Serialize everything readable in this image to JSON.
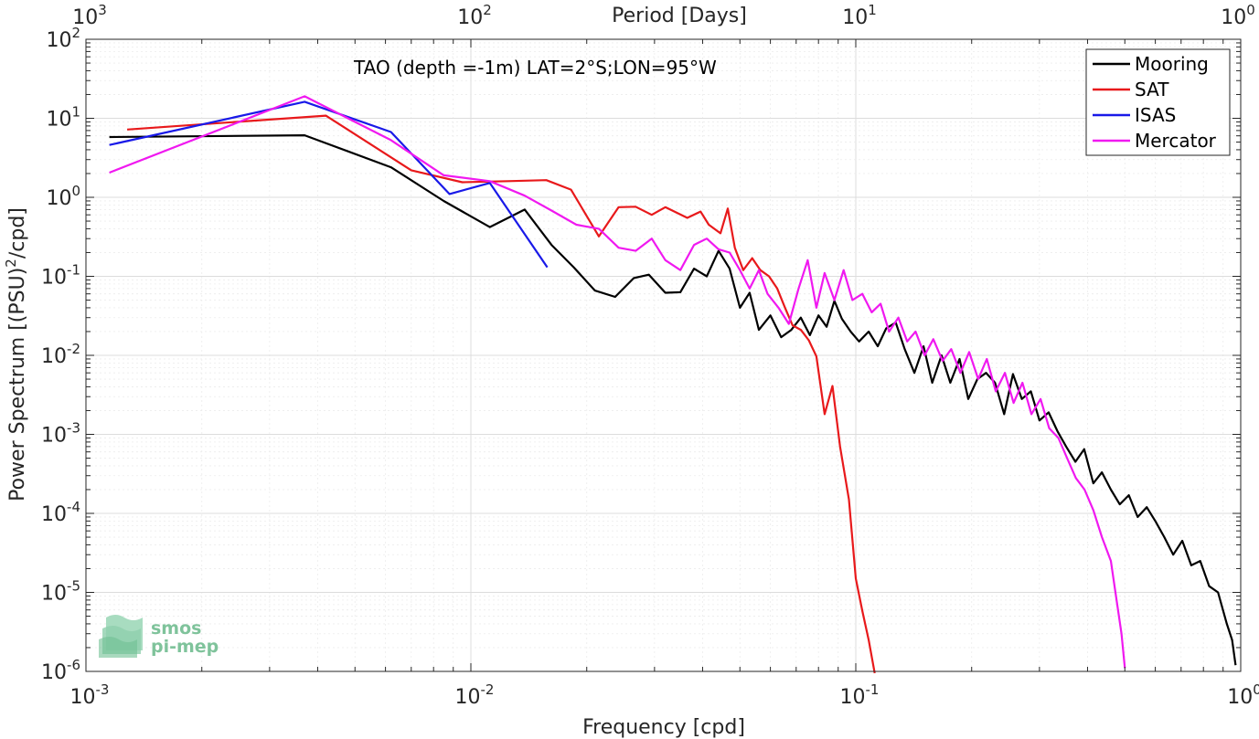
{
  "chart_data": {
    "type": "line",
    "title": "TAO (depth =-1m) LAT=2°S;LON=95°W",
    "xlabel": "Frequency [cpd]",
    "ylabel": "Power Spectrum [(PSU)²/cpd]",
    "ylabel_base": "Power Spectrum [(PSU)",
    "ylabel_sup": "2",
    "ylabel_tail": "/cpd]",
    "top_xlabel": "Period [Days]",
    "xscale": "log",
    "yscale": "log",
    "xlim": [
      0.001,
      1
    ],
    "ylim": [
      1e-06,
      100
    ],
    "grid": true,
    "legend_position": "top-right",
    "x_tick_labels": [
      {
        "base": "10",
        "exp": "-3"
      },
      {
        "base": "10",
        "exp": "-2"
      },
      {
        "base": "10",
        "exp": "-1"
      },
      {
        "base": "10",
        "exp": "0"
      }
    ],
    "top_tick_labels": [
      {
        "base": "10",
        "exp": "3"
      },
      {
        "base": "10",
        "exp": "2"
      },
      {
        "base": "10",
        "exp": "1"
      },
      {
        "base": "10",
        "exp": "0"
      }
    ],
    "y_tick_labels": [
      {
        "base": "10",
        "exp": "-6"
      },
      {
        "base": "10",
        "exp": "-5"
      },
      {
        "base": "10",
        "exp": "-4"
      },
      {
        "base": "10",
        "exp": "-3"
      },
      {
        "base": "10",
        "exp": "-2"
      },
      {
        "base": "10",
        "exp": "-1"
      },
      {
        "base": "10",
        "exp": "0"
      },
      {
        "base": "10",
        "exp": "1"
      },
      {
        "base": "10",
        "exp": "2"
      }
    ],
    "series": [
      {
        "name": "Mooring",
        "color": "#000000",
        "points": [
          [
            0.00115,
            5.8
          ],
          [
            0.0037,
            6.1
          ],
          [
            0.0062,
            2.4
          ],
          [
            0.0085,
            0.9
          ],
          [
            0.0112,
            0.42
          ],
          [
            0.0138,
            0.7
          ],
          [
            0.0162,
            0.25
          ],
          [
            0.0185,
            0.13
          ],
          [
            0.021,
            0.066
          ],
          [
            0.0237,
            0.055
          ],
          [
            0.0265,
            0.095
          ],
          [
            0.029,
            0.105
          ],
          [
            0.032,
            0.062
          ],
          [
            0.035,
            0.063
          ],
          [
            0.038,
            0.125
          ],
          [
            0.041,
            0.1
          ],
          [
            0.044,
            0.21
          ],
          [
            0.047,
            0.125
          ],
          [
            0.05,
            0.04
          ],
          [
            0.053,
            0.062
          ],
          [
            0.056,
            0.021
          ],
          [
            0.06,
            0.032
          ],
          [
            0.064,
            0.017
          ],
          [
            0.068,
            0.021
          ],
          [
            0.072,
            0.03
          ],
          [
            0.076,
            0.018
          ],
          [
            0.08,
            0.032
          ],
          [
            0.084,
            0.023
          ],
          [
            0.088,
            0.049
          ],
          [
            0.092,
            0.029
          ],
          [
            0.097,
            0.02
          ],
          [
            0.102,
            0.015
          ],
          [
            0.108,
            0.02
          ],
          [
            0.114,
            0.013
          ],
          [
            0.12,
            0.022
          ],
          [
            0.127,
            0.026
          ],
          [
            0.134,
            0.012
          ],
          [
            0.142,
            0.006
          ],
          [
            0.15,
            0.013
          ],
          [
            0.158,
            0.0045
          ],
          [
            0.167,
            0.01
          ],
          [
            0.176,
            0.0045
          ],
          [
            0.186,
            0.009
          ],
          [
            0.196,
            0.0028
          ],
          [
            0.207,
            0.005
          ],
          [
            0.218,
            0.006
          ],
          [
            0.23,
            0.0045
          ],
          [
            0.243,
            0.0018
          ],
          [
            0.256,
            0.0058
          ],
          [
            0.27,
            0.0028
          ],
          [
            0.285,
            0.0035
          ],
          [
            0.3,
            0.0015
          ],
          [
            0.317,
            0.0019
          ],
          [
            0.334,
            0.0011
          ],
          [
            0.352,
            0.0007
          ],
          [
            0.372,
            0.00045
          ],
          [
            0.392,
            0.00065
          ],
          [
            0.414,
            0.00024
          ],
          [
            0.436,
            0.00033
          ],
          [
            0.46,
            0.0002
          ],
          [
            0.485,
            0.00013
          ],
          [
            0.512,
            0.00017
          ],
          [
            0.54,
            9e-05
          ],
          [
            0.57,
            0.00012
          ],
          [
            0.6,
            8e-05
          ],
          [
            0.633,
            5e-05
          ],
          [
            0.668,
            3e-05
          ],
          [
            0.705,
            4.5e-05
          ],
          [
            0.744,
            2.2e-05
          ],
          [
            0.785,
            2.5e-05
          ],
          [
            0.828,
            1.2e-05
          ],
          [
            0.873,
            1e-05
          ],
          [
            0.92,
            4e-06
          ],
          [
            0.95,
            2.5e-06
          ],
          [
            0.97,
            1.2e-06
          ]
        ]
      },
      {
        "name": "SAT",
        "color": "#e8191b",
        "points": [
          [
            0.00128,
            7.2
          ],
          [
            0.0042,
            10.8
          ],
          [
            0.007,
            2.2
          ],
          [
            0.0095,
            1.55
          ],
          [
            0.0125,
            1.6
          ],
          [
            0.0157,
            1.65
          ],
          [
            0.0182,
            1.25
          ],
          [
            0.0215,
            0.32
          ],
          [
            0.0242,
            0.75
          ],
          [
            0.0268,
            0.76
          ],
          [
            0.0295,
            0.6
          ],
          [
            0.032,
            0.75
          ],
          [
            0.0365,
            0.55
          ],
          [
            0.0395,
            0.66
          ],
          [
            0.0415,
            0.45
          ],
          [
            0.0445,
            0.35
          ],
          [
            0.0465,
            0.72
          ],
          [
            0.0485,
            0.23
          ],
          [
            0.051,
            0.12
          ],
          [
            0.0538,
            0.17
          ],
          [
            0.0565,
            0.12
          ],
          [
            0.0595,
            0.1
          ],
          [
            0.0625,
            0.07
          ],
          [
            0.0655,
            0.04
          ],
          [
            0.0685,
            0.024
          ],
          [
            0.072,
            0.021
          ],
          [
            0.0755,
            0.0155
          ],
          [
            0.079,
            0.0097
          ],
          [
            0.083,
            0.0018
          ],
          [
            0.087,
            0.0041
          ],
          [
            0.091,
            0.0007
          ],
          [
            0.096,
            0.00015
          ],
          [
            0.1,
            1.5e-05
          ],
          [
            0.104,
            5.8e-06
          ],
          [
            0.108,
            2.5e-06
          ],
          [
            0.112,
            9.5e-07
          ]
        ]
      },
      {
        "name": "ISAS",
        "color": "#1919e8",
        "points": [
          [
            0.00115,
            4.6
          ],
          [
            0.0037,
            16.2
          ],
          [
            0.0062,
            6.7
          ],
          [
            0.0088,
            1.1
          ],
          [
            0.0112,
            1.52
          ],
          [
            0.0158,
            0.13
          ]
        ]
      },
      {
        "name": "Mercator",
        "color": "#f019f0",
        "points": [
          [
            0.00115,
            2.05
          ],
          [
            0.0037,
            19.0
          ],
          [
            0.0062,
            5.3
          ],
          [
            0.0085,
            1.9
          ],
          [
            0.0112,
            1.6
          ],
          [
            0.0138,
            1.05
          ],
          [
            0.0162,
            0.68
          ],
          [
            0.0188,
            0.45
          ],
          [
            0.0215,
            0.4
          ],
          [
            0.0242,
            0.23
          ],
          [
            0.0268,
            0.21
          ],
          [
            0.0295,
            0.3
          ],
          [
            0.032,
            0.16
          ],
          [
            0.035,
            0.12
          ],
          [
            0.038,
            0.25
          ],
          [
            0.041,
            0.3
          ],
          [
            0.044,
            0.22
          ],
          [
            0.047,
            0.2
          ],
          [
            0.05,
            0.12
          ],
          [
            0.053,
            0.07
          ],
          [
            0.056,
            0.12
          ],
          [
            0.059,
            0.06
          ],
          [
            0.063,
            0.04
          ],
          [
            0.067,
            0.025
          ],
          [
            0.071,
            0.07
          ],
          [
            0.075,
            0.16
          ],
          [
            0.079,
            0.04
          ],
          [
            0.083,
            0.11
          ],
          [
            0.088,
            0.05
          ],
          [
            0.093,
            0.12
          ],
          [
            0.098,
            0.05
          ],
          [
            0.104,
            0.06
          ],
          [
            0.11,
            0.035
          ],
          [
            0.116,
            0.045
          ],
          [
            0.122,
            0.02
          ],
          [
            0.129,
            0.03
          ],
          [
            0.136,
            0.015
          ],
          [
            0.143,
            0.02
          ],
          [
            0.151,
            0.01
          ],
          [
            0.159,
            0.016
          ],
          [
            0.168,
            0.0085
          ],
          [
            0.177,
            0.012
          ],
          [
            0.187,
            0.006
          ],
          [
            0.197,
            0.011
          ],
          [
            0.208,
            0.005
          ],
          [
            0.219,
            0.009
          ],
          [
            0.231,
            0.0035
          ],
          [
            0.244,
            0.006
          ],
          [
            0.257,
            0.0025
          ],
          [
            0.271,
            0.0045
          ],
          [
            0.286,
            0.0018
          ],
          [
            0.302,
            0.0028
          ],
          [
            0.318,
            0.0012
          ],
          [
            0.336,
            0.0009
          ],
          [
            0.354,
            0.0005
          ],
          [
            0.373,
            0.00028
          ],
          [
            0.393,
            0.0002
          ],
          [
            0.414,
            0.00011
          ],
          [
            0.436,
            5e-05
          ],
          [
            0.46,
            2.5e-05
          ],
          [
            0.47,
            1.2e-05
          ],
          [
            0.48,
            6e-06
          ],
          [
            0.49,
            3e-06
          ],
          [
            0.5,
            1.1e-06
          ]
        ]
      }
    ]
  },
  "logo": {
    "line1": "smos",
    "line2": "pi-mep"
  }
}
